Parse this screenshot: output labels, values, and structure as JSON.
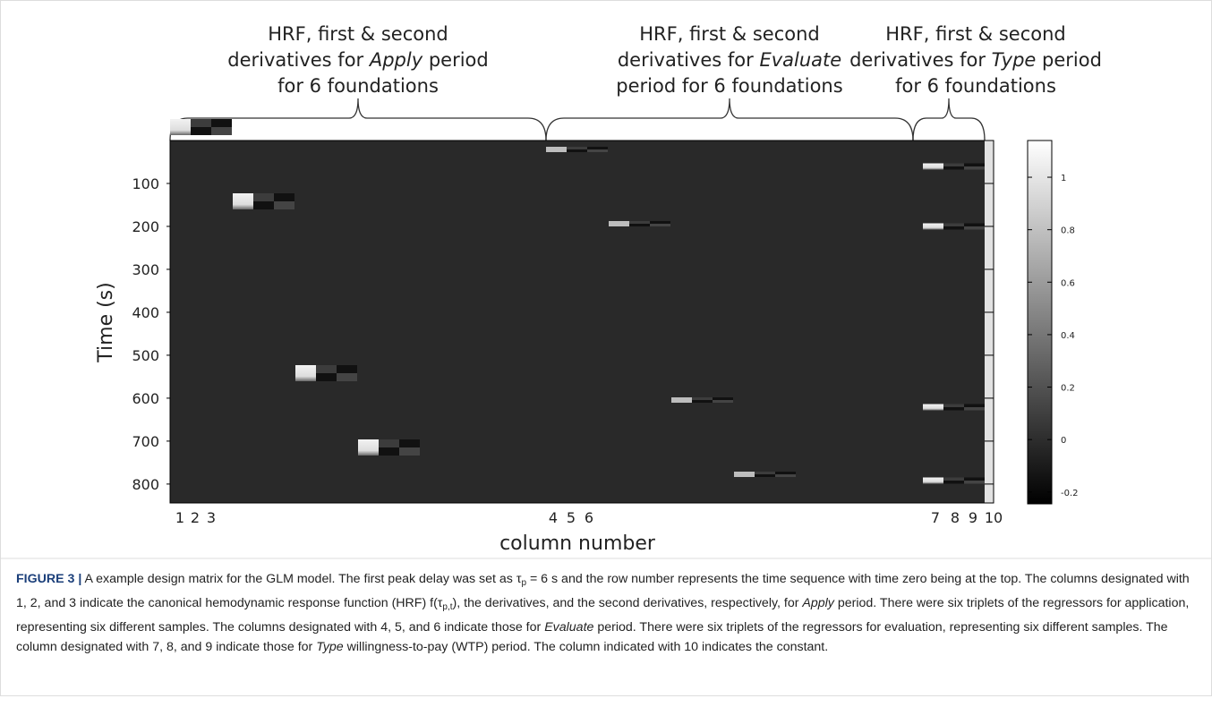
{
  "figure": {
    "annotations": [
      {
        "lines": [
          {
            "text": "HRF, first & second"
          },
          {
            "before": "derivatives for ",
            "em": "Apply",
            "after": " period"
          },
          {
            "text": "for 6 foundations"
          }
        ]
      },
      {
        "lines": [
          {
            "text": "HRF, first & second"
          },
          {
            "before": "derivatives for ",
            "em": "Evaluate"
          },
          {
            "text": "period for 6 foundations"
          }
        ]
      },
      {
        "lines": [
          {
            "text": "HRF, first & second"
          },
          {
            "before": "derivatives for ",
            "em": "Type",
            "after": " period"
          },
          {
            "text": "for 6 foundations"
          }
        ]
      }
    ],
    "y_label": "Time (s)",
    "x_label": "column number",
    "ylim": [
      0,
      844
    ],
    "yticks": [
      100,
      200,
      300,
      400,
      500,
      600,
      700,
      800
    ],
    "column_labels": [
      "1",
      "2",
      "3",
      "4",
      "5",
      "6",
      "7",
      "8",
      "9",
      "10"
    ],
    "colorbar": {
      "lim": [
        -0.245,
        1.14
      ],
      "ticks": [
        1,
        0.8,
        0.6,
        0.4,
        0.2,
        0,
        -0.2
      ]
    }
  },
  "caption": [
    {
      "text": "FIGURE 3 |",
      "style": "bold"
    },
    {
      "text": " A example design matrix for the GLM model. The first peak delay was set as τ",
      "style": "normal"
    },
    {
      "text": "p",
      "style": "sub"
    },
    {
      "text": " = 6 s and the row number represents the time sequence with time zero being at the top. The columns designated with 1, 2, and 3 indicate the canonical hemodynamic response function (HRF) f(τ",
      "style": "normal"
    },
    {
      "text": "p,t",
      "style": "sub"
    },
    {
      "text": "), the derivatives, and the second derivatives, respectively, for ",
      "style": "normal"
    },
    {
      "text": "Apply",
      "style": "italic"
    },
    {
      "text": " period. There were six triplets of the regressors for application, representing six different samples. The columns designated with 4, 5, and 6 indicate those for ",
      "style": "normal"
    },
    {
      "text": "Evaluate",
      "style": "italic"
    },
    {
      "text": " period. There were six triplets of the regressors for evaluation, representing six different samples. The column designated with 7, 8, and 9 indicate those for ",
      "style": "normal"
    },
    {
      "text": "Type",
      "style": "italic"
    },
    {
      "text": " willingness-to-pay (WTP) period. The column indicated with 10 indicates the constant.",
      "style": "normal"
    }
  ]
}
